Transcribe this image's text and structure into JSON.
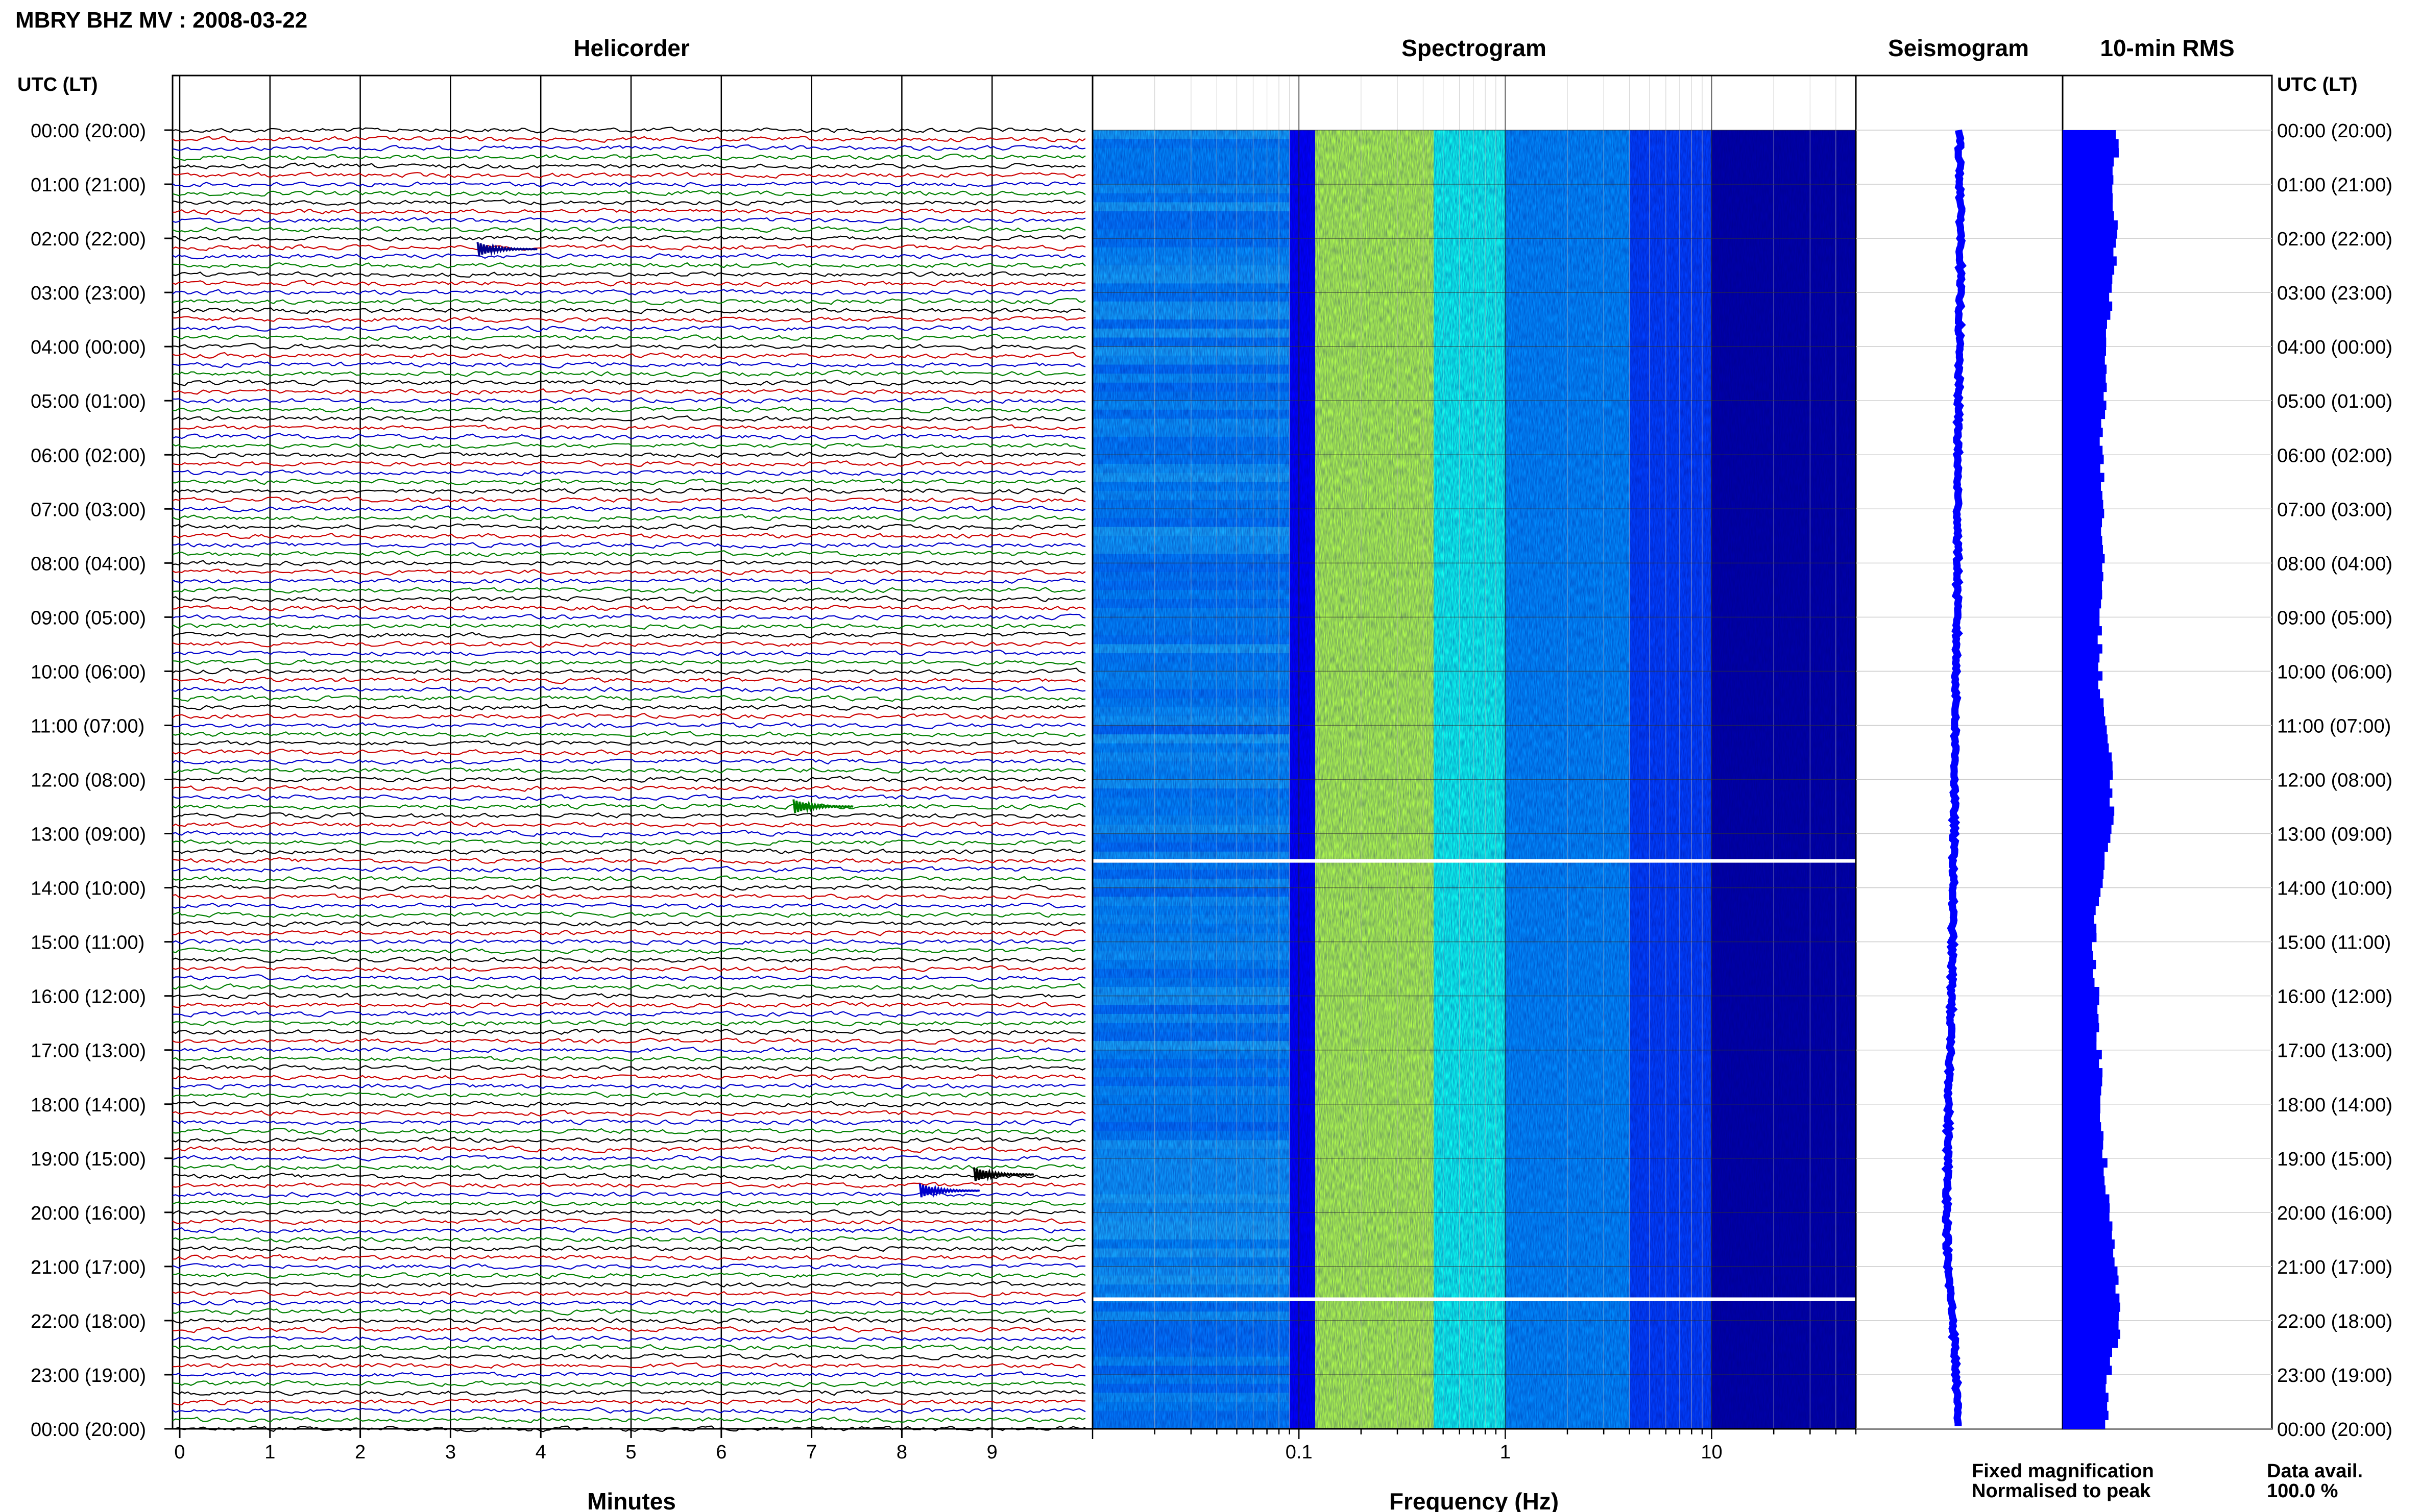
{
  "header": {
    "title": "MBRY BHZ MV : 2008-03-22"
  },
  "chart_data": [
    {
      "type": "line",
      "title": "Helicorder",
      "xlabel": "Minutes",
      "xlim": [
        0,
        10
      ],
      "x_ticks": [
        "0",
        "1",
        "2",
        "3",
        "4",
        "5",
        "6",
        "7",
        "8",
        "9"
      ],
      "y_axis_label_left": "UTC (LT)",
      "y_axis_label_right": "UTC (LT)",
      "time_labels": [
        "00:00 (20:00)",
        "01:00 (21:00)",
        "02:00 (22:00)",
        "03:00 (23:00)",
        "04:00 (00:00)",
        "05:00 (01:00)",
        "06:00 (02:00)",
        "07:00 (03:00)",
        "08:00 (04:00)",
        "09:00 (05:00)",
        "10:00 (06:00)",
        "11:00 (07:00)",
        "12:00 (08:00)",
        "13:00 (09:00)",
        "14:00 (10:00)",
        "15:00 (11:00)",
        "16:00 (12:00)",
        "17:00 (13:00)",
        "18:00 (14:00)",
        "19:00 (15:00)",
        "20:00 (16:00)",
        "21:00 (17:00)",
        "22:00 (18:00)",
        "23:00 (19:00)",
        "00:00 (20:00)"
      ],
      "traces_per_hour": 6,
      "trace_colors": [
        "#000000",
        "#cc0000",
        "#0000cc",
        "#008000"
      ],
      "events": [
        {
          "hour": 2.2,
          "minute": 3.3,
          "color": "#00008b"
        },
        {
          "hour": 12.5,
          "minute": 6.8,
          "color": "#008000"
        },
        {
          "hour": 19.3,
          "minute": 8.8,
          "color": "#000000"
        },
        {
          "hour": 19.6,
          "minute": 8.2,
          "color": "#0000cc"
        }
      ]
    },
    {
      "type": "heatmap",
      "title": "Spectrogram",
      "xlabel": "Frequency (Hz)",
      "x_scale": "log",
      "xlim": [
        0.01,
        50
      ],
      "x_tick_labels": [
        "0.1",
        "1",
        "10"
      ],
      "x_tick_values": [
        0.1,
        1,
        10
      ],
      "colormap": [
        "#00008b",
        "#0000ff",
        "#0080ff",
        "#00ffff",
        "#80ff80",
        "#ffff00"
      ],
      "bands_hz": [
        {
          "f": [
            0.01,
            0.09
          ],
          "level": 0.42
        },
        {
          "f": [
            0.09,
            0.12
          ],
          "level": 0.2
        },
        {
          "f": [
            0.12,
            0.45
          ],
          "level": 0.88
        },
        {
          "f": [
            0.45,
            1.0
          ],
          "level": 0.62
        },
        {
          "f": [
            1.0,
            4.0
          ],
          "level": 0.42
        },
        {
          "f": [
            4.0,
            10.0
          ],
          "level": 0.3
        },
        {
          "f": [
            10.0,
            50.0
          ],
          "level": 0.05
        }
      ],
      "gaps_hour": [
        13.5,
        21.6
      ]
    },
    {
      "type": "line",
      "title": "Seismogram",
      "color": "#0000ff",
      "trend": [
        [
          0,
          0.5
        ],
        [
          2,
          0.55
        ],
        [
          4,
          0.5
        ],
        [
          6,
          0.45
        ],
        [
          8,
          0.45
        ],
        [
          10,
          0.4
        ],
        [
          12,
          0.35
        ],
        [
          14,
          0.3
        ],
        [
          16,
          0.25
        ],
        [
          18,
          0.15
        ],
        [
          20,
          0.1
        ],
        [
          21,
          0.12
        ],
        [
          22,
          0.3
        ],
        [
          23,
          0.4
        ],
        [
          24,
          0.45
        ]
      ]
    },
    {
      "type": "bar",
      "title": "10-min RMS",
      "color": "#0000ff",
      "orientation": "horizontal",
      "relative_values_by_hour": [
        [
          0,
          0.78
        ],
        [
          1,
          0.7
        ],
        [
          2,
          0.75
        ],
        [
          3,
          0.68
        ],
        [
          4,
          0.6
        ],
        [
          6,
          0.55
        ],
        [
          8,
          0.55
        ],
        [
          10,
          0.52
        ],
        [
          12,
          0.7
        ],
        [
          13,
          0.68
        ],
        [
          14,
          0.5
        ],
        [
          15,
          0.45
        ],
        [
          16,
          0.48
        ],
        [
          17,
          0.52
        ],
        [
          18,
          0.55
        ],
        [
          19,
          0.6
        ],
        [
          20,
          0.65
        ],
        [
          21,
          0.75
        ],
        [
          22,
          0.8
        ],
        [
          23,
          0.65
        ],
        [
          24,
          0.6
        ]
      ]
    }
  ],
  "legend": {
    "fixed": "Fixed magnification",
    "fixed_color": "#0000ff",
    "normalised": "Normalised to peak",
    "normalised_color": "#ff0000"
  },
  "data_avail": {
    "label": "Data avail.",
    "value": "100.0 %"
  }
}
